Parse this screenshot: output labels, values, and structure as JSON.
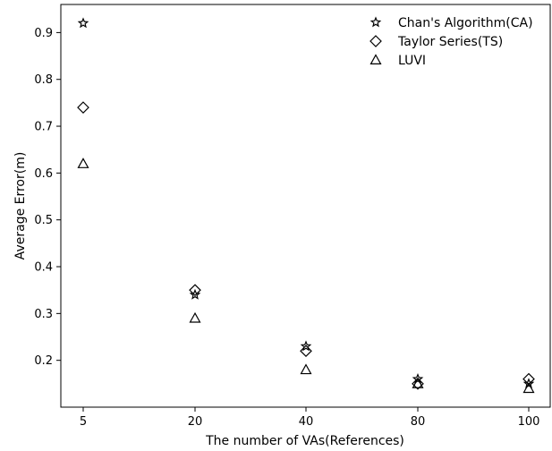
{
  "chart_data": {
    "type": "scatter",
    "xlabel": "The number of VAs(References)",
    "ylabel": "Average Error(m)",
    "x_ticks": [
      "5",
      "20",
      "40",
      "80",
      "100"
    ],
    "ylim": [
      0.1,
      0.96
    ],
    "y_ticks": [
      "0.2",
      "0.3",
      "0.4",
      "0.5",
      "0.6",
      "0.7",
      "0.8",
      "0.9"
    ],
    "legend_position": "top-right",
    "grid": false,
    "series": [
      {
        "name": "Chan's Algorithm(CA)",
        "marker": "star",
        "x": [
          "5",
          "20",
          "40",
          "80",
          "100"
        ],
        "values": [
          0.92,
          0.34,
          0.23,
          0.16,
          0.15
        ]
      },
      {
        "name": "Taylor Series(TS)",
        "marker": "diamond",
        "x": [
          "5",
          "20",
          "40",
          "80",
          "100"
        ],
        "values": [
          0.74,
          0.35,
          0.22,
          0.15,
          0.16
        ]
      },
      {
        "name": "LUVI",
        "marker": "triangle",
        "x": [
          "5",
          "20",
          "40",
          "80",
          "100"
        ],
        "values": [
          0.62,
          0.29,
          0.18,
          0.15,
          0.14
        ]
      }
    ]
  }
}
